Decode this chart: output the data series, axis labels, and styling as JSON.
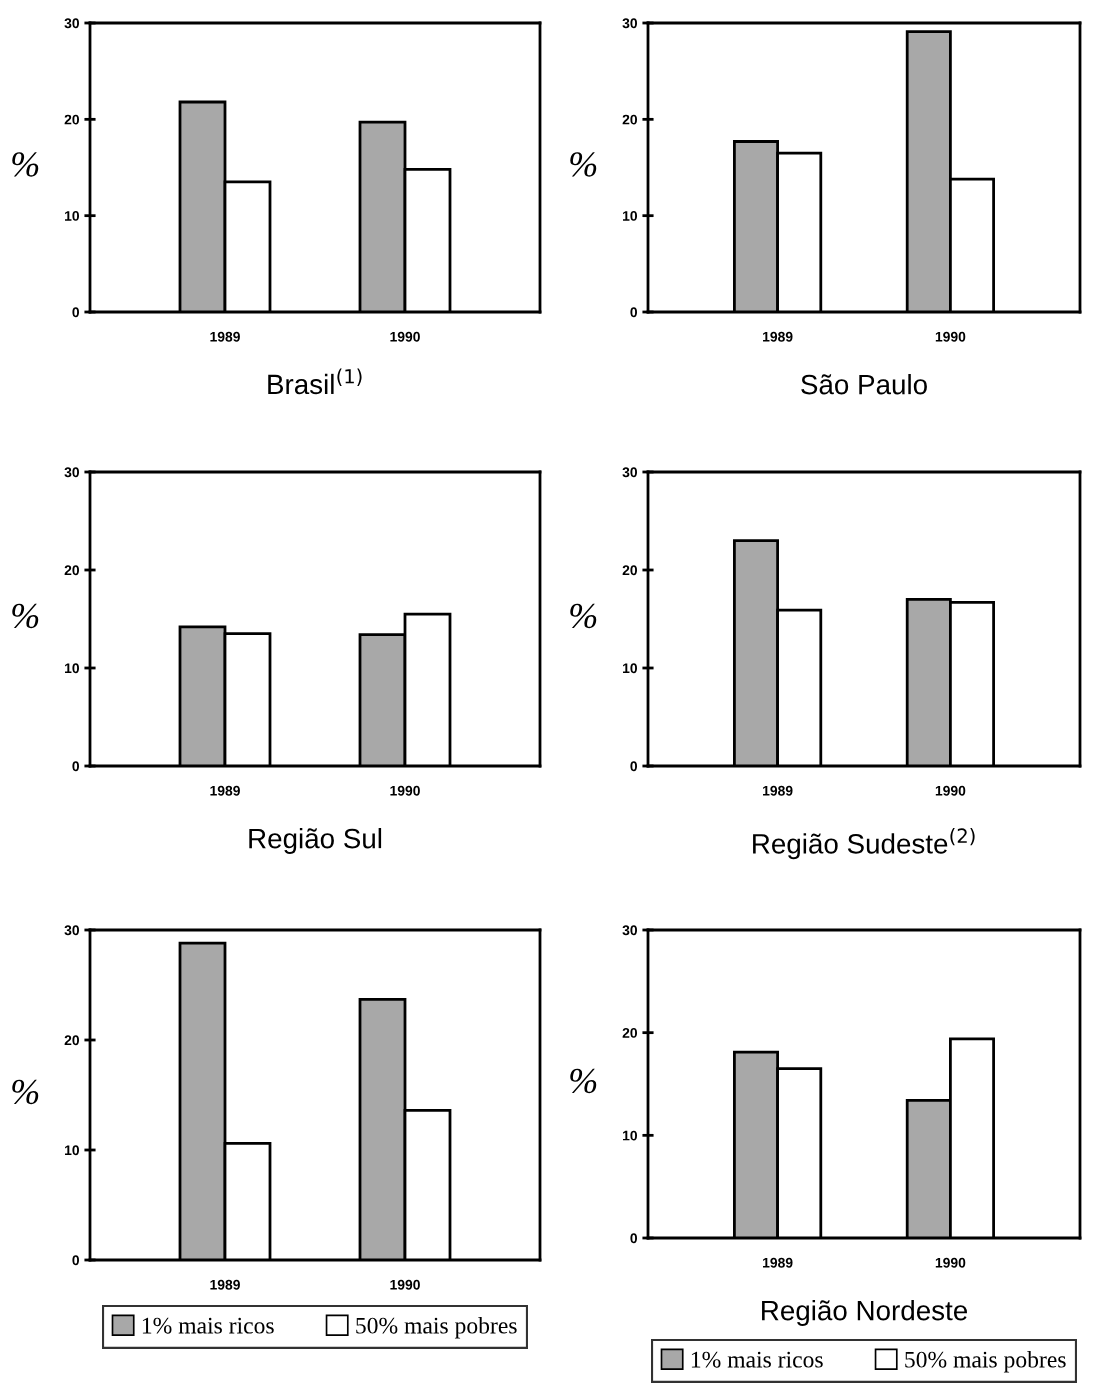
{
  "chart_data": [
    {
      "type": "bar",
      "title": "Brasil$^{(1)}$",
      "ylabel": "%",
      "categories": [
        "1989",
        "1990"
      ],
      "ylim": [
        0,
        30
      ],
      "yticks": [
        0,
        10,
        20,
        30
      ],
      "grid": false,
      "legend": false,
      "series": [
        {
          "color": "#a8a8a8",
          "values": [
            21.8,
            19.7
          ]
        },
        {
          "color": "#ffffff",
          "values": [
            13.5,
            14.8
          ]
        }
      ]
    },
    {
      "type": "bar",
      "title": "São Paulo",
      "ylabel": "%",
      "categories": [
        "1989",
        "1990"
      ],
      "ylim": [
        0,
        30
      ],
      "yticks": [
        0,
        10,
        20,
        30
      ],
      "grid": false,
      "legend": false,
      "series": [
        {
          "color": "#a8a8a8",
          "values": [
            17.7,
            29.1
          ]
        },
        {
          "color": "#ffffff",
          "values": [
            16.5,
            13.8
          ]
        }
      ]
    },
    {
      "type": "bar",
      "title": "Região Sul",
      "ylabel": "%",
      "categories": [
        "1989",
        "1990"
      ],
      "ylim": [
        0,
        30
      ],
      "yticks": [
        0,
        10,
        20,
        30
      ],
      "grid": false,
      "legend": false,
      "series": [
        {
          "color": "#a8a8a8",
          "values": [
            14.2,
            13.4
          ]
        },
        {
          "color": "#ffffff",
          "values": [
            13.5,
            15.5
          ]
        }
      ]
    },
    {
      "type": "bar",
      "title": "Região Sudeste$^{(2)}$",
      "ylabel": "%",
      "categories": [
        "1989",
        "1990"
      ],
      "ylim": [
        0,
        30
      ],
      "yticks": [
        0,
        10,
        20,
        30
      ],
      "grid": false,
      "legend": false,
      "series": [
        {
          "color": "#a8a8a8",
          "values": [
            23.0,
            17.0
          ]
        },
        {
          "color": "#ffffff",
          "values": [
            15.9,
            16.7
          ]
        }
      ]
    },
    {
      "type": "bar",
      "ylabel": "%",
      "categories": [
        "1989",
        "1990"
      ],
      "ylim": [
        0,
        30
      ],
      "yticks": [
        0,
        10,
        20,
        30
      ],
      "grid": false,
      "legend": "bottom",
      "series": [
        {
          "name": "1% mais ricos",
          "color": "#a8a8a8",
          "values": [
            28.8,
            23.7
          ]
        },
        {
          "name": "50% mais pobres",
          "color": "#ffffff",
          "values": [
            10.6,
            13.6
          ]
        }
      ]
    },
    {
      "type": "bar",
      "title": "Região Nordeste",
      "ylabel": "%",
      "categories": [
        "1989",
        "1990"
      ],
      "ylim": [
        0,
        30
      ],
      "yticks": [
        0,
        10,
        20,
        30
      ],
      "grid": false,
      "legend": "bottom",
      "series": [
        {
          "name": "1% mais ricos",
          "color": "#a8a8a8",
          "values": [
            18.1,
            13.4
          ]
        },
        {
          "name": "50% mais pobres",
          "color": "#ffffff",
          "values": [
            16.5,
            19.4
          ]
        }
      ]
    }
  ]
}
